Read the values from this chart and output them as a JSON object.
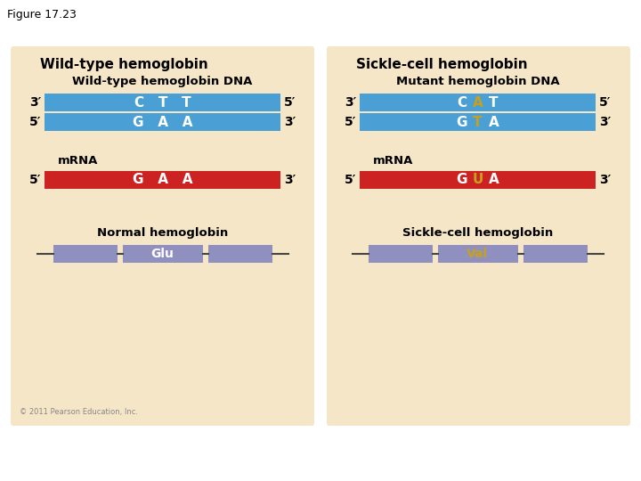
{
  "figure_title": "Figure 17.23",
  "bg_color": "#ffffff",
  "panel_bg": "#f5e6c8",
  "blue_color": "#4a9fd4",
  "red_color": "#cc2222",
  "purple_color": "#9090c0",
  "white_text": "#ffffff",
  "black_text": "#000000",
  "gold_text": "#c8a020",
  "left_panel_title": "Wild-type hemoglobin",
  "right_panel_title": "Sickle-cell hemoglobin",
  "left_dna_title": "Wild-type hemoglobin DNA",
  "right_dna_title": "Mutant hemoglobin DNA",
  "left_mrna_label": "mRNA",
  "right_mrna_label": "mRNA",
  "left_protein_label": "Normal hemoglobin",
  "right_protein_label": "Sickle-cell hemoglobin",
  "left_codon": "Glu",
  "right_codon": "Val",
  "copyright": "© 2011 Pearson Education, Inc.",
  "prime": "′"
}
